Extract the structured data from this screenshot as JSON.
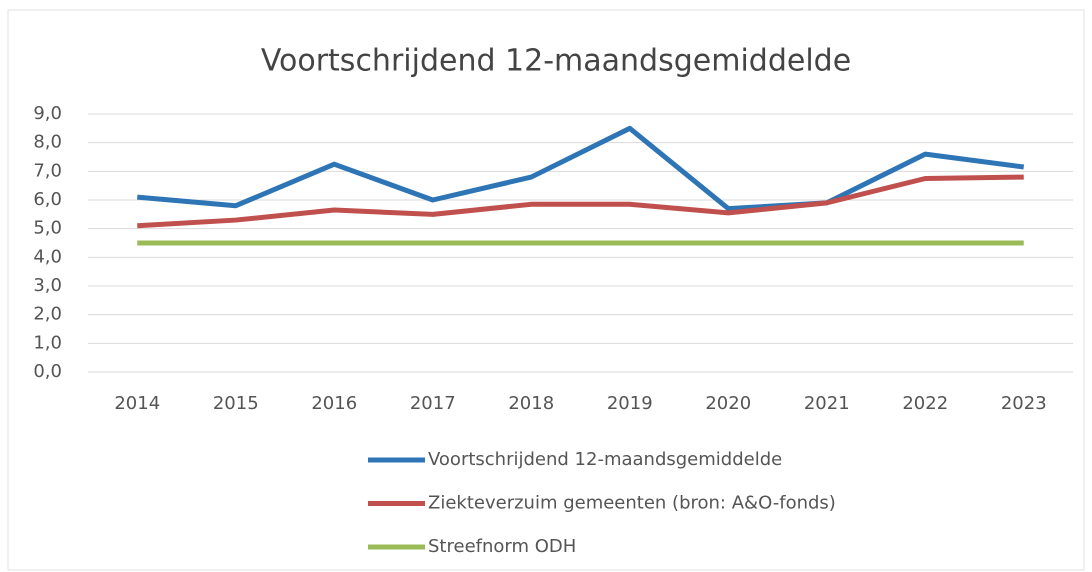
{
  "chart_data": {
    "type": "line",
    "title": "Voortschrijdend 12-maandsgemiddelde",
    "categories": [
      "2014",
      "2015",
      "2016",
      "2017",
      "2018",
      "2019",
      "2020",
      "2021",
      "2022",
      "2023"
    ],
    "series": [
      {
        "name": "Voortschrijdend 12-maandsgemiddelde",
        "color": "#2e75b6",
        "values": [
          6.1,
          5.8,
          7.25,
          6.0,
          6.8,
          8.5,
          5.7,
          5.9,
          7.6,
          7.15
        ]
      },
      {
        "name": "Ziekteverzuim gemeenten (bron: A&O-fonds)",
        "color": "#c0504d",
        "values": [
          5.1,
          5.3,
          5.65,
          5.5,
          5.85,
          5.85,
          5.55,
          5.9,
          6.75,
          6.8
        ]
      },
      {
        "name": "Streefnorm ODH",
        "color": "#9bbb59",
        "values": [
          4.5,
          4.5,
          4.5,
          4.5,
          4.5,
          4.5,
          4.5,
          4.5,
          4.5,
          4.5
        ]
      }
    ],
    "ylim": [
      0,
      9
    ],
    "yticks": [
      {
        "value": 0,
        "label": "0,0"
      },
      {
        "value": 1,
        "label": "1,0"
      },
      {
        "value": 2,
        "label": "2,0"
      },
      {
        "value": 3,
        "label": "3,0"
      },
      {
        "value": 4,
        "label": "4,0"
      },
      {
        "value": 5,
        "label": "5,0"
      },
      {
        "value": 6,
        "label": "6,0"
      },
      {
        "value": 7,
        "label": "7,0"
      },
      {
        "value": 8,
        "label": "8,0"
      },
      {
        "value": 9,
        "label": "9,0"
      }
    ],
    "grid": true,
    "legend": "bottom"
  }
}
